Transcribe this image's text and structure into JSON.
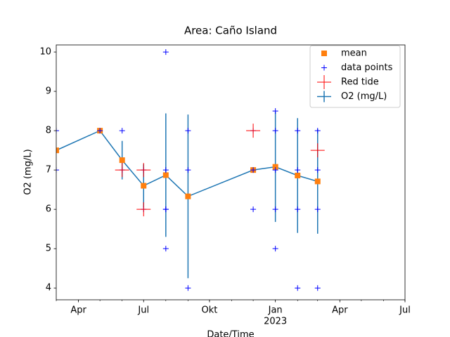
{
  "chart_data": {
    "type": "line",
    "title": "Area: Caño Island",
    "xlabel": "Date/Time",
    "ylabel": "O2 (mg/L)",
    "xlim": [
      "2022-03",
      "2023-07"
    ],
    "xticks": [
      {
        "value": "2022-04",
        "label": "Apr"
      },
      {
        "value": "2022-07",
        "label": "Jul"
      },
      {
        "value": "2022-10",
        "label": "Okt"
      },
      {
        "value": "2023-01",
        "label": "Jan"
      },
      {
        "value": "2023-04",
        "label": "Apr"
      },
      {
        "value": "2023-07",
        "label": "Jul"
      }
    ],
    "year_labels": [
      {
        "value": "2023-01",
        "label": "2023"
      }
    ],
    "ylim": [
      3.7,
      10.18
    ],
    "yticks": [
      4,
      5,
      6,
      7,
      8,
      9,
      10
    ],
    "legend": "upper right",
    "series": [
      {
        "name": "mean",
        "kind": "square",
        "color": "#ff7f0e",
        "x": [
          "2022-03",
          "2022-05",
          "2022-06",
          "2022-07",
          "2022-08",
          "2022-09",
          "2022-12",
          "2023-01",
          "2023-02",
          "2023-03"
        ],
        "values": [
          7.5,
          8.0,
          7.25,
          6.6,
          6.87,
          6.33,
          7.0,
          7.08,
          6.86,
          6.71
        ]
      },
      {
        "name": "data points",
        "kind": "plus",
        "color": "#0000ff",
        "x": [
          "2022-03",
          "2022-03",
          "2022-05",
          "2022-06",
          "2022-06",
          "2022-07",
          "2022-07",
          "2022-08",
          "2022-08",
          "2022-08",
          "2022-08",
          "2022-08",
          "2022-09",
          "2022-09",
          "2022-09",
          "2022-12",
          "2022-12",
          "2022-12",
          "2023-01",
          "2023-01",
          "2023-01",
          "2023-01",
          "2023-01",
          "2023-02",
          "2023-02",
          "2023-02",
          "2023-02",
          "2023-03",
          "2023-03",
          "2023-03",
          "2023-03"
        ],
        "values": [
          8,
          7,
          8,
          8,
          7,
          7,
          6,
          10,
          7,
          6,
          6,
          5,
          8,
          7,
          4,
          8,
          7,
          6,
          8.5,
          8,
          7,
          6,
          5,
          8,
          7,
          6,
          4,
          8,
          7,
          6,
          4
        ]
      },
      {
        "name": "Red tide",
        "kind": "bigplus",
        "color": "#ff0000",
        "x": [
          "2022-06",
          "2022-07",
          "2022-07",
          "2022-12",
          "2023-03"
        ],
        "values": [
          7,
          7,
          6,
          8,
          7.5
        ]
      },
      {
        "name": "O2 (mg/L)",
        "kind": "errorline",
        "color": "#1f77b4",
        "x": [
          "2022-03",
          "2022-05",
          "2022-06",
          "2022-07",
          "2022-08",
          "2022-09",
          "2022-12",
          "2023-01",
          "2023-02",
          "2023-03"
        ],
        "values": [
          7.5,
          8.0,
          7.25,
          6.6,
          6.87,
          6.33,
          7.0,
          7.08,
          6.86,
          6.71
        ],
        "errors": [
          0,
          0,
          0.49,
          0.55,
          1.57,
          2.08,
          0,
          1.4,
          1.46,
          1.33
        ]
      }
    ]
  }
}
